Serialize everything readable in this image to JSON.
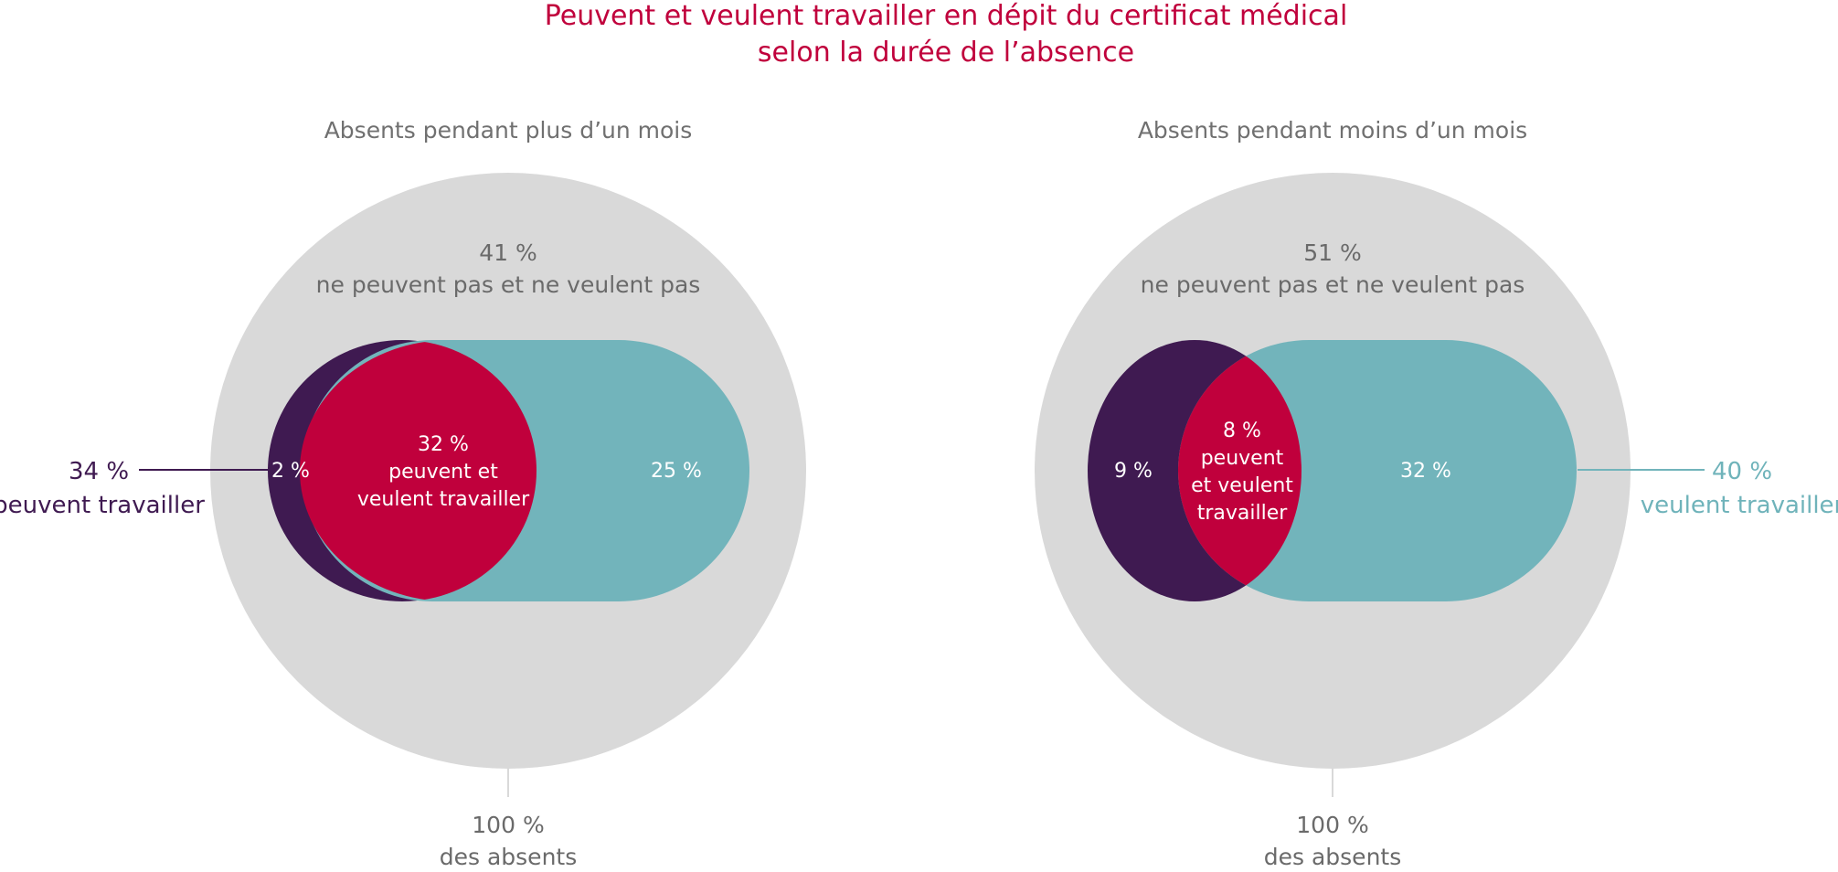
{
  "title": {
    "line1": "Peuvent et veulent travailler en dépit du certificat médical",
    "line2": "selon la durée de l’absence"
  },
  "colors": {
    "background_circle": "#d9d9d9",
    "peuvent_travailler": "#3f1a51",
    "veulent_travailler": "#72b4bb",
    "peuvent_et_veulent": "#c0003c",
    "title": "#c0003c",
    "gray_text": "#6a6a6a"
  },
  "chart_data": [
    {
      "type": "venn",
      "panel_title": "Absents pendant plus d’un mois",
      "total": {
        "value": 100,
        "label_pct": "100 %",
        "label_text": "des absents"
      },
      "neither": {
        "value": 41,
        "label_pct": "41 %",
        "label_text": "ne peuvent pas et ne veulent pas"
      },
      "peuvent_only": {
        "value": 2,
        "label_pct": "2 %"
      },
      "both": {
        "value": 32,
        "label_pct": "32 %",
        "label_line1": "peuvent et",
        "label_line2": "veulent travailler"
      },
      "veulent_only": {
        "value": 25,
        "label_pct": "25 %"
      },
      "callout": {
        "series": "peuvent",
        "value": 34,
        "label_pct": "34 %",
        "label_text": "peuvent travailler"
      }
    },
    {
      "type": "venn",
      "panel_title": "Absents pendant moins d’un mois",
      "total": {
        "value": 100,
        "label_pct": "100 %",
        "label_text": "des absents"
      },
      "neither": {
        "value": 51,
        "label_pct": "51 %",
        "label_text": "ne peuvent pas et ne veulent pas"
      },
      "peuvent_only": {
        "value": 9,
        "label_pct": "9 %"
      },
      "both": {
        "value": 8,
        "label_pct": "8 %",
        "label_line1": "peuvent",
        "label_line2": "et veulent",
        "label_line3": "travailler"
      },
      "veulent_only": {
        "value": 32,
        "label_pct": "32 %"
      },
      "callout": {
        "series": "veulent",
        "value": 40,
        "label_pct": "40 %",
        "label_text": "veulent travailler"
      }
    }
  ]
}
